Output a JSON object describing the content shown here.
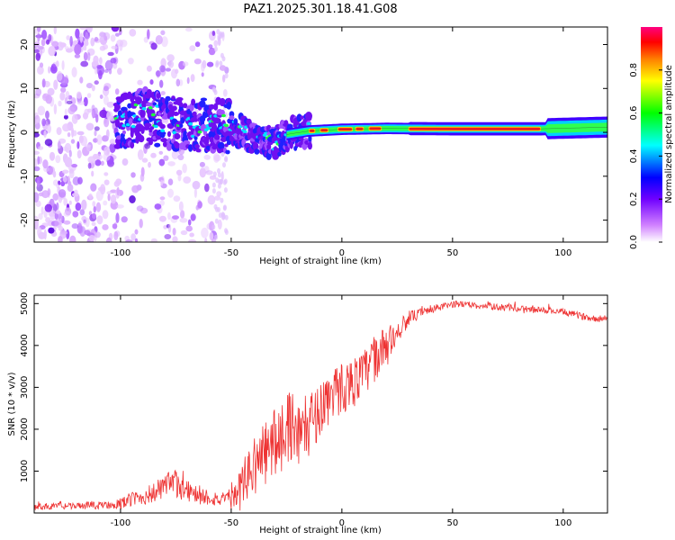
{
  "title": "PAZ1.2025.301.18.41.G08",
  "chart_data": [
    {
      "type": "heatmap",
      "title": "PAZ1.2025.301.18.41.G08",
      "xlabel": "Height of straight line (km)",
      "ylabel": "Frequency (Hz)",
      "xlim": [
        -139,
        120
      ],
      "ylim": [
        -25,
        24
      ],
      "xticks": [
        -100,
        -50,
        0,
        50,
        100
      ],
      "xtick_labels": [
        "-100",
        "-50",
        "0",
        "50",
        "100"
      ],
      "yticks": [
        -20,
        -10,
        0,
        10,
        20
      ],
      "ytick_labels": [
        "-20",
        "-10",
        "0",
        "10",
        "20"
      ],
      "colorbar": {
        "label": "Normalized spectral amplitude",
        "range": [
          0,
          1
        ],
        "ticks": [
          0,
          0.2,
          0.4,
          0.6,
          0.8
        ],
        "tick_labels": [
          "0.0",
          "0.2",
          "0.4",
          "0.6",
          "0.8"
        ],
        "colormap": [
          "#ffffff",
          "#b000ff",
          "#0000ff",
          "#00ffff",
          "#00ff00",
          "#ffff00",
          "#ff8000",
          "#ff0000",
          "#ff0080"
        ]
      },
      "ridge": [
        {
          "x": -100,
          "y": 2.0
        },
        {
          "x": -90,
          "y": 4.0
        },
        {
          "x": -80,
          "y": 2.5
        },
        {
          "x": -70,
          "y": 1.5
        },
        {
          "x": -60,
          "y": 2.0
        },
        {
          "x": -50,
          "y": 1.0
        },
        {
          "x": -40,
          "y": -1.0
        },
        {
          "x": -30,
          "y": -2.5
        },
        {
          "x": -25,
          "y": -0.5
        },
        {
          "x": -15,
          "y": 0.3
        },
        {
          "x": 0,
          "y": 0.7
        },
        {
          "x": 20,
          "y": 0.9
        },
        {
          "x": 50,
          "y": 0.8
        },
        {
          "x": 90,
          "y": 0.8
        },
        {
          "x": 120,
          "y": 1.2
        }
      ]
    },
    {
      "type": "line",
      "xlabel": "Height of straight line (km)",
      "ylabel": "SNR (10 * v/v)",
      "xlim": [
        -139,
        120
      ],
      "ylim": [
        0,
        5200
      ],
      "xticks": [
        -100,
        -50,
        0,
        50,
        100
      ],
      "xtick_labels": [
        "-100",
        "-50",
        "0",
        "50",
        "100"
      ],
      "yticks": [
        1000,
        2000,
        3000,
        4000,
        5000
      ],
      "ytick_labels": [
        "1000",
        "2000",
        "3000",
        "4000",
        "5000"
      ],
      "color": "#ee3333",
      "series": [
        {
          "name": "SNR",
          "x": [
            -139,
            -130,
            -120,
            -110,
            -100,
            -95,
            -90,
            -85,
            -80,
            -75,
            -70,
            -65,
            -60,
            -55,
            -50,
            -45,
            -40,
            -35,
            -30,
            -25,
            -22,
            -20,
            -15,
            -10,
            -5,
            0,
            5,
            10,
            15,
            20,
            25,
            30,
            35,
            40,
            45,
            50,
            55,
            60,
            65,
            70,
            75,
            80,
            85,
            90,
            95,
            100,
            105,
            110,
            115,
            120
          ],
          "y": [
            150,
            160,
            170,
            180,
            220,
            330,
            380,
            480,
            620,
            700,
            560,
            420,
            380,
            320,
            280,
            700,
            1100,
            1400,
            1700,
            2000,
            2200,
            1900,
            2100,
            2500,
            2800,
            3000,
            3100,
            3300,
            3700,
            4000,
            4300,
            4650,
            4750,
            4850,
            4920,
            4980,
            5000,
            4960,
            4940,
            4920,
            4900,
            4880,
            4860,
            4840,
            4820,
            4800,
            4740,
            4680,
            4640,
            4600
          ],
          "noise": [
            80,
            80,
            80,
            90,
            120,
            180,
            200,
            250,
            320,
            350,
            300,
            220,
            200,
            180,
            200,
            500,
            700,
            800,
            900,
            850,
            900,
            800,
            750,
            700,
            650,
            650,
            600,
            600,
            550,
            450,
            300,
            180,
            120,
            100,
            90,
            80,
            80,
            80,
            80,
            80,
            80,
            80,
            80,
            80,
            80,
            80,
            80,
            80,
            80,
            80
          ]
        }
      ]
    }
  ]
}
